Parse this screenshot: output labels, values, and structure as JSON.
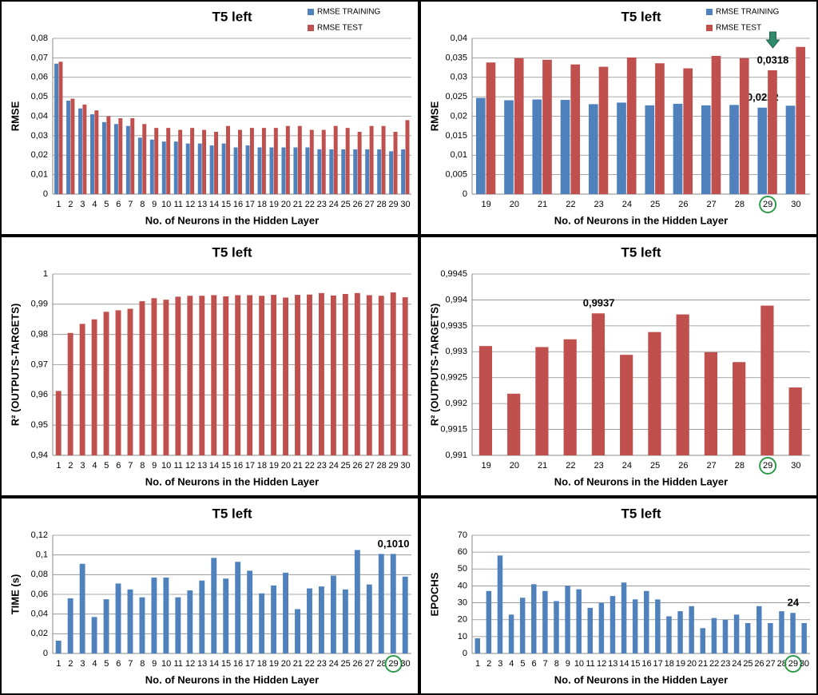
{
  "chart_data": [
    {
      "type": "bar",
      "title": "T5 left",
      "x_label": "No. of Neurons in the Hidden Layer",
      "y_label": "RMSE",
      "legend": "top-right",
      "grid": true,
      "categories": [
        1,
        2,
        3,
        4,
        5,
        6,
        7,
        8,
        9,
        10,
        11,
        12,
        13,
        14,
        15,
        16,
        17,
        18,
        19,
        20,
        21,
        22,
        23,
        24,
        25,
        26,
        27,
        28,
        29,
        30
      ],
      "series": [
        {
          "name": "RMSE TRAINING",
          "color": "#4f81bd",
          "values": [
            0.067,
            0.048,
            0.044,
            0.041,
            0.037,
            0.036,
            0.035,
            0.029,
            0.028,
            0.027,
            0.027,
            0.026,
            0.026,
            0.025,
            0.026,
            0.024,
            0.025,
            0.024,
            0.024,
            0.024,
            0.024,
            0.024,
            0.023,
            0.023,
            0.023,
            0.023,
            0.023,
            0.023,
            0.022,
            0.023
          ]
        },
        {
          "name": "RMSE TEST",
          "color": "#c0504d",
          "values": [
            0.068,
            0.049,
            0.046,
            0.043,
            0.04,
            0.039,
            0.039,
            0.036,
            0.034,
            0.034,
            0.033,
            0.034,
            0.033,
            0.032,
            0.035,
            0.033,
            0.034,
            0.034,
            0.034,
            0.035,
            0.035,
            0.033,
            0.033,
            0.035,
            0.034,
            0.032,
            0.035,
            0.035,
            0.032,
            0.038
          ]
        }
      ],
      "ylim": [
        0,
        0.08
      ],
      "yticks": [
        0,
        {
          "value": 0.01,
          "label": "0,01"
        },
        {
          "value": 0.02,
          "label": "0,02"
        },
        {
          "value": 0.03,
          "label": "0,03"
        },
        {
          "value": 0.04,
          "label": "0,04"
        },
        {
          "value": 0.05,
          "label": "0,05"
        },
        {
          "value": 0.06,
          "label": "0,06"
        },
        {
          "value": 0.07,
          "label": "0,07"
        },
        {
          "value": 0.08,
          "label": "0,08"
        }
      ]
    },
    {
      "type": "bar",
      "title": "T5 left",
      "x_label": "No. of Neurons in the Hidden Layer",
      "y_label": "RMSE",
      "legend": "top-right",
      "grid": true,
      "highlight": 29,
      "categories": [
        19,
        20,
        21,
        22,
        23,
        24,
        25,
        26,
        27,
        28,
        29,
        30
      ],
      "series": [
        {
          "name": "RMSE TRAINING",
          "color": "#4f81bd",
          "values": [
            0.0247,
            0.0241,
            0.0243,
            0.0242,
            0.0231,
            0.0235,
            0.0228,
            0.0232,
            0.0228,
            0.0229,
            0.0222,
            0.0227
          ],
          "value_labels": [
            null,
            null,
            null,
            null,
            null,
            null,
            null,
            null,
            null,
            null,
            "0,0222",
            null
          ]
        },
        {
          "name": "RMSE TEST",
          "color": "#c0504d",
          "values": [
            0.0338,
            0.0349,
            0.0345,
            0.0333,
            0.0327,
            0.0351,
            0.0336,
            0.0323,
            0.0355,
            0.0349,
            0.0318,
            0.0378
          ],
          "value_labels": [
            null,
            null,
            null,
            null,
            null,
            null,
            null,
            null,
            null,
            null,
            "0,0318",
            null
          ]
        }
      ],
      "ylim": [
        0,
        0.04
      ],
      "yticks": [
        0,
        {
          "value": 0.005,
          "label": "0,005"
        },
        {
          "value": 0.01,
          "label": "0,01"
        },
        {
          "value": 0.015,
          "label": "0,015"
        },
        {
          "value": 0.02,
          "label": "0,02"
        },
        {
          "value": 0.025,
          "label": "0,025"
        },
        {
          "value": 0.03,
          "label": "0,03"
        },
        {
          "value": 0.035,
          "label": "0,035"
        },
        {
          "value": 0.04,
          "label": "0,04"
        }
      ]
    },
    {
      "type": "bar",
      "title": "T5 left",
      "x_label": "No. of Neurons in the Hidden Layer",
      "y_label": "R² (OUTPUTS-TARGETS)",
      "grid": true,
      "categories": [
        1,
        2,
        3,
        4,
        5,
        6,
        7,
        8,
        9,
        10,
        11,
        12,
        13,
        14,
        15,
        16,
        17,
        18,
        19,
        20,
        21,
        22,
        23,
        24,
        25,
        26,
        27,
        28,
        29,
        30
      ],
      "series": [
        {
          "color": "#c0504d",
          "values": [
            0.9613,
            0.9805,
            0.9835,
            0.985,
            0.9875,
            0.988,
            0.9885,
            0.991,
            0.992,
            0.9915,
            0.9925,
            0.9928,
            0.9928,
            0.993,
            0.9926,
            0.993,
            0.993,
            0.9928,
            0.9931,
            0.9922,
            0.9931,
            0.9932,
            0.9937,
            0.9929,
            0.9934,
            0.9937,
            0.993,
            0.9928,
            0.9939,
            0.9923
          ]
        }
      ],
      "ylim": [
        0.94,
        1
      ],
      "yticks": [
        {
          "value": 0.94,
          "label": "0,94"
        },
        {
          "value": 0.95,
          "label": "0,95"
        },
        {
          "value": 0.96,
          "label": "0,96"
        },
        {
          "value": 0.97,
          "label": "0,97"
        },
        {
          "value": 0.98,
          "label": "0,98"
        },
        {
          "value": 0.99,
          "label": "0,99"
        },
        1
      ]
    },
    {
      "type": "bar",
      "title": "T5 left",
      "x_label": "No. of Neurons in the Hidden Layer",
      "y_label": "R² (OUTPUTS-TARGETS)",
      "grid": true,
      "highlight": 29,
      "categories": [
        19,
        20,
        21,
        22,
        23,
        24,
        25,
        26,
        27,
        28,
        29,
        30
      ],
      "series": [
        {
          "color": "#c0504d",
          "values": [
            0.99311,
            0.99219,
            0.99309,
            0.99324,
            0.99374,
            0.99294,
            0.99338,
            0.99372,
            0.99299,
            0.9928,
            0.99389,
            0.99231
          ],
          "value_labels": [
            null,
            null,
            null,
            null,
            "0,9937",
            null,
            null,
            null,
            null,
            null,
            null,
            null
          ]
        }
      ],
      "ylim": [
        0.991,
        0.9945
      ],
      "yticks": [
        {
          "value": 0.991,
          "label": "0,991"
        },
        {
          "value": 0.9915,
          "label": "0,9915"
        },
        {
          "value": 0.992,
          "label": "0,992"
        },
        {
          "value": 0.9925,
          "label": "0,9925"
        },
        {
          "value": 0.993,
          "label": "0,993"
        },
        {
          "value": 0.9935,
          "label": "0,9935"
        },
        {
          "value": 0.994,
          "label": "0,994"
        },
        {
          "value": 0.9945,
          "label": "0,9945"
        }
      ]
    },
    {
      "type": "bar",
      "title": "T5 left",
      "x_label": "No. of Neurons in the Hidden Layer",
      "y_label": "TIME (s)",
      "grid": true,
      "highlight": 29,
      "categories": [
        1,
        2,
        3,
        4,
        5,
        6,
        7,
        8,
        9,
        10,
        11,
        12,
        13,
        14,
        15,
        16,
        17,
        18,
        19,
        20,
        21,
        22,
        23,
        24,
        25,
        26,
        27,
        28,
        29,
        30
      ],
      "series": [
        {
          "color": "#4f81bd",
          "values": [
            0.013,
            0.056,
            0.091,
            0.037,
            0.055,
            0.071,
            0.065,
            0.057,
            0.077,
            0.077,
            0.057,
            0.064,
            0.074,
            0.097,
            0.076,
            0.093,
            0.084,
            0.061,
            0.069,
            0.082,
            0.045,
            0.066,
            0.068,
            0.079,
            0.065,
            0.105,
            0.07,
            0.101,
            0.101,
            0.078
          ],
          "value_labels": [
            null,
            null,
            null,
            null,
            null,
            null,
            null,
            null,
            null,
            null,
            null,
            null,
            null,
            null,
            null,
            null,
            null,
            null,
            null,
            null,
            null,
            null,
            null,
            null,
            null,
            null,
            null,
            null,
            "0,1010",
            null
          ]
        }
      ],
      "ylim": [
        0,
        0.12
      ],
      "yticks": [
        0,
        {
          "value": 0.02,
          "label": "0,02"
        },
        {
          "value": 0.04,
          "label": "0,04"
        },
        {
          "value": 0.06,
          "label": "0,06"
        },
        {
          "value": 0.08,
          "label": "0,08"
        },
        {
          "value": 0.1,
          "label": "0,1"
        },
        {
          "value": 0.12,
          "label": "0,12"
        }
      ]
    },
    {
      "type": "bar",
      "title": "T5 left",
      "x_label": "No. of Neurons in the Hidden Layer",
      "y_label": "EPOCHS",
      "grid": true,
      "highlight": 29,
      "categories": [
        1,
        2,
        3,
        4,
        5,
        6,
        7,
        8,
        9,
        10,
        11,
        12,
        13,
        14,
        15,
        16,
        17,
        18,
        19,
        20,
        21,
        22,
        23,
        24,
        25,
        26,
        27,
        28,
        29,
        30
      ],
      "series": [
        {
          "color": "#4f81bd",
          "values": [
            9,
            37,
            58,
            23,
            33,
            41,
            37,
            31,
            40,
            38,
            27,
            30,
            34,
            42,
            32,
            37,
            32,
            22,
            25,
            28,
            15,
            21,
            20,
            23,
            18,
            28,
            18,
            25,
            24,
            18
          ],
          "value_labels": [
            null,
            null,
            null,
            null,
            null,
            null,
            null,
            null,
            null,
            null,
            null,
            null,
            null,
            null,
            null,
            null,
            null,
            null,
            null,
            null,
            null,
            null,
            null,
            null,
            null,
            null,
            null,
            null,
            "24",
            null
          ]
        }
      ],
      "ylim": [
        0,
        70
      ],
      "yticks": [
        0,
        10,
        20,
        30,
        40,
        50,
        60,
        70
      ]
    }
  ]
}
